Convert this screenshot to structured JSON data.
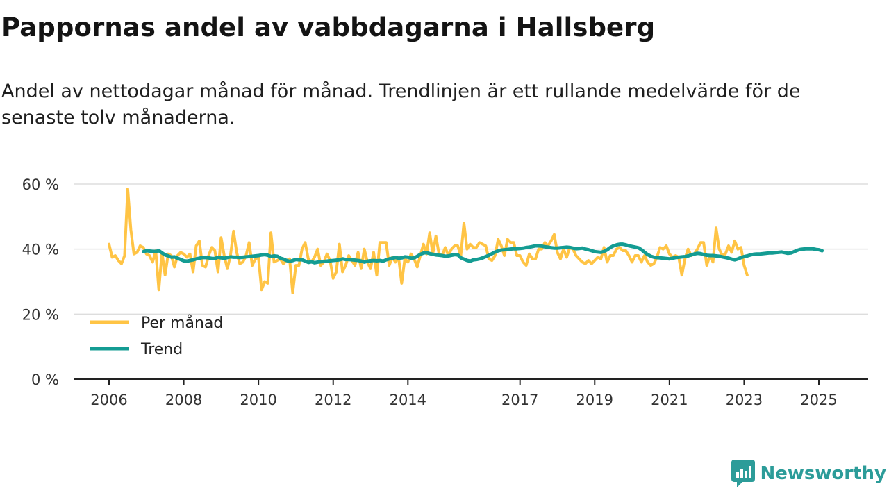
{
  "title": "Pappornas andel av vabbdagarna i Hallsberg",
  "subtitle": "Andel av nettodagar månad för månad. Trendlinjen är ett rullande medelvärde för de senaste tolv månaderna.",
  "brand": "Newsworthy",
  "colors": {
    "monthly": "#ffc445",
    "trend": "#149c93",
    "grid": "#dddddd",
    "axis": "#222222",
    "brand": "#2c9c99"
  },
  "chart_data": {
    "type": "line",
    "title": "Pappornas andel av vabbdagarna i Hallsberg",
    "xlabel": "",
    "ylabel": "",
    "ylim": [
      0,
      60
    ],
    "yticks": [
      0,
      20,
      40,
      60
    ],
    "ytick_labels": [
      "0 %",
      "20 %",
      "40 %",
      "60 %"
    ],
    "xlim": [
      2006,
      2026.33
    ],
    "xticks": [
      2006,
      2008,
      2010,
      2012,
      2014,
      2017,
      2019,
      2021,
      2023,
      2025
    ],
    "xtick_labels": [
      "2006",
      "2008",
      "2010",
      "2012",
      "2014",
      "2017",
      "2019",
      "2021",
      "2023",
      "2025"
    ],
    "legend": {
      "position": "bottom-left",
      "entries": [
        "Per månad",
        "Trend"
      ]
    },
    "series": [
      {
        "name": "Per månad",
        "x_start": 2006.0,
        "x_step": 0.08333,
        "values": [
          41.5,
          37.5,
          38,
          36.5,
          35.5,
          38,
          58.5,
          46,
          38.5,
          39,
          41,
          40.5,
          38.5,
          38,
          36,
          39.5,
          27.5,
          39,
          32,
          38.5,
          38,
          34.5,
          38,
          39,
          38.5,
          37.5,
          38.5,
          33,
          41,
          42.5,
          35,
          34.5,
          38,
          40.5,
          39.5,
          33,
          43.5,
          38,
          34,
          38,
          45.5,
          39,
          35.5,
          36,
          38,
          42,
          35,
          37,
          37.5,
          27.5,
          30,
          29.5,
          45,
          36,
          36.5,
          37,
          35.5,
          36.5,
          37,
          26.5,
          35,
          35,
          40,
          42,
          37,
          36,
          37.5,
          40,
          35,
          36,
          38.5,
          36.5,
          31,
          33,
          41.5,
          33,
          35,
          38,
          36.5,
          35,
          39,
          34,
          40,
          36,
          34,
          39,
          32,
          42,
          42,
          42,
          35,
          37.5,
          36,
          37.5,
          29.5,
          37,
          36,
          38.5,
          37,
          34.5,
          38,
          41.5,
          38.5,
          45,
          38.5,
          44,
          38.5,
          38,
          40.5,
          38,
          40,
          41,
          41,
          38,
          48,
          40,
          41.5,
          40.5,
          40.5,
          42,
          41.5,
          41,
          37,
          36.5,
          38,
          43,
          41,
          38,
          43,
          42,
          42,
          38,
          38,
          36,
          35,
          38.5,
          37,
          37,
          40,
          40,
          42,
          41,
          42.5,
          44.5,
          39,
          37,
          40,
          37.5,
          40.5,
          40,
          38,
          37,
          36,
          35.5,
          36.5,
          35.5,
          36.5,
          37.5,
          37,
          40.5,
          36,
          38,
          38,
          40,
          40.5,
          39.5,
          39.5,
          38,
          36,
          38,
          38,
          36,
          38,
          36,
          35,
          35.5,
          37.5,
          40.5,
          40,
          41,
          38.5,
          37.5,
          38,
          37.5,
          32,
          37,
          40,
          38,
          38.5,
          40,
          42,
          42,
          35,
          38,
          36,
          46.5,
          40,
          38,
          38.5,
          41,
          39,
          42.5,
          40,
          40.5,
          35,
          32
        ]
      },
      {
        "name": "Trend",
        "x_start": 2006.92,
        "x_step": 0.08333,
        "values": [
          39.2,
          39.5,
          39.4,
          39.3,
          39.3,
          39.5,
          38.8,
          38.2,
          37.9,
          37.5,
          37.6,
          37.2,
          36.8,
          36.4,
          36.3,
          36.5,
          36.7,
          37,
          37.2,
          37.4,
          37.4,
          37.3,
          37.1,
          37.1,
          37.5,
          37.3,
          37.2,
          37.4,
          37.6,
          37.5,
          37.5,
          37.4,
          37.5,
          37.6,
          37.7,
          37.8,
          37.9,
          38,
          38.2,
          38.3,
          38.1,
          37.7,
          37.9,
          37.8,
          37.2,
          36.9,
          36.5,
          36.2,
          36.5,
          36.8,
          36.7,
          36.7,
          36.3,
          35.9,
          36.1,
          35.8,
          36,
          36.1,
          36.2,
          36.3,
          36.4,
          36.5,
          36.6,
          36.7,
          37,
          36.8,
          36.8,
          36.7,
          36.6,
          36.5,
          36.3,
          36,
          36.3,
          36.4,
          36.5,
          36.4,
          36.5,
          36.3,
          36.7,
          37,
          37.2,
          37.4,
          37.2,
          37.3,
          37.6,
          37.5,
          37.2,
          37.3,
          37.8,
          38.4,
          38.8,
          38.9,
          38.6,
          38.4,
          38.2,
          38.1,
          38,
          37.8,
          37.9,
          38.1,
          38.3,
          38.2,
          37.3,
          36.9,
          36.5,
          36.3,
          36.7,
          36.8,
          37,
          37.3,
          37.7,
          38.1,
          38.6,
          39.1,
          39.5,
          39.7,
          39.8,
          39.9,
          40,
          40.1,
          40.1,
          40.2,
          40.3,
          40.5,
          40.6,
          40.8,
          41,
          41,
          40.9,
          40.7,
          40.6,
          40.4,
          40.3,
          40.3,
          40.4,
          40.5,
          40.6,
          40.5,
          40.3,
          40.1,
          40.2,
          40.3,
          40,
          39.8,
          39.5,
          39.2,
          39.1,
          39,
          39.3,
          39.8,
          40.5,
          41,
          41.3,
          41.5,
          41.5,
          41.3,
          41,
          40.8,
          40.6,
          40.4,
          39.8,
          39,
          38.3,
          37.8,
          37.5,
          37.4,
          37.3,
          37.2,
          37.1,
          37,
          37.2,
          37.4,
          37.5,
          37.6,
          37.7,
          37.9,
          38.2,
          38.5,
          38.7,
          38.6,
          38.3,
          38.1,
          38,
          38,
          37.9,
          37.8,
          37.6,
          37.4,
          37.2,
          36.9,
          36.7,
          37,
          37.4,
          37.7,
          37.9,
          38.2,
          38.4,
          38.5,
          38.5,
          38.6,
          38.7,
          38.8,
          38.8,
          38.9,
          39,
          39.1,
          38.9,
          38.7,
          38.8,
          39.2,
          39.6,
          39.9,
          40,
          40.1,
          40.1,
          40.1,
          39.9,
          39.8,
          39.5
        ]
      }
    ]
  }
}
